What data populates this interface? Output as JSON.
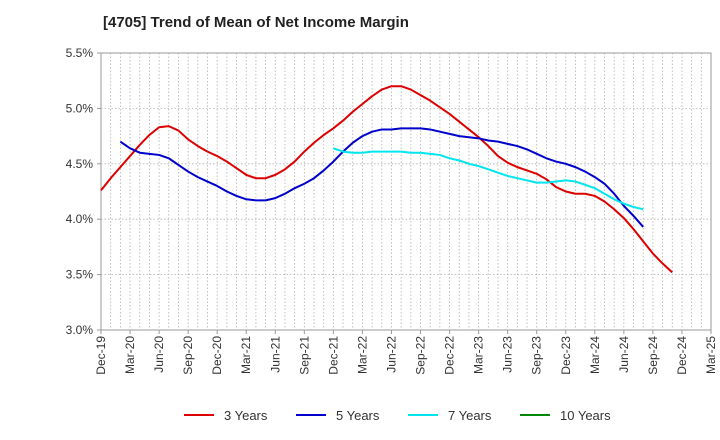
{
  "chart_data": {
    "type": "line",
    "title": "[4705]  Trend of Mean of Net Income Margin",
    "xlabel": "",
    "ylabel": "",
    "ylim": [
      3.0,
      5.5
    ],
    "y_ticks": [
      "3.0%",
      "3.5%",
      "4.0%",
      "4.5%",
      "5.0%",
      "5.5%"
    ],
    "y_tick_values": [
      3.0,
      3.5,
      4.0,
      4.5,
      5.0,
      5.5
    ],
    "x_ticks": [
      "Dec-19",
      "Mar-20",
      "Jun-20",
      "Sep-20",
      "Dec-20",
      "Mar-21",
      "Jun-21",
      "Sep-21",
      "Dec-21",
      "Mar-22",
      "Jun-22",
      "Sep-22",
      "Dec-22",
      "Mar-23",
      "Jun-23",
      "Sep-23",
      "Dec-23",
      "Mar-24",
      "Jun-24",
      "Sep-24",
      "Dec-24",
      "Mar-25"
    ],
    "grid": true,
    "legend_position": "bottom",
    "series": [
      {
        "name": "3 Years",
        "color": "#dd0000",
        "points": [
          [
            "Dec-19",
            4.26
          ],
          [
            "Jan-20",
            4.37
          ],
          [
            "Feb-20",
            4.47
          ],
          [
            "Mar-20",
            4.57
          ],
          [
            "Apr-20",
            4.67
          ],
          [
            "May-20",
            4.76
          ],
          [
            "Jun-20",
            4.83
          ],
          [
            "Jul-20",
            4.84
          ],
          [
            "Aug-20",
            4.8
          ],
          [
            "Sep-20",
            4.72
          ],
          [
            "Oct-20",
            4.66
          ],
          [
            "Nov-20",
            4.61
          ],
          [
            "Dec-20",
            4.57
          ],
          [
            "Jan-21",
            4.52
          ],
          [
            "Feb-21",
            4.46
          ],
          [
            "Mar-21",
            4.4
          ],
          [
            "Apr-21",
            4.37
          ],
          [
            "May-21",
            4.37
          ],
          [
            "Jun-21",
            4.4
          ],
          [
            "Jul-21",
            4.45
          ],
          [
            "Aug-21",
            4.52
          ],
          [
            "Sep-21",
            4.61
          ],
          [
            "Oct-21",
            4.69
          ],
          [
            "Nov-21",
            4.76
          ],
          [
            "Dec-21",
            4.82
          ],
          [
            "Jan-22",
            4.89
          ],
          [
            "Feb-22",
            4.97
          ],
          [
            "Mar-22",
            5.04
          ],
          [
            "Apr-22",
            5.11
          ],
          [
            "May-22",
            5.17
          ],
          [
            "Jun-22",
            5.2
          ],
          [
            "Jul-22",
            5.2
          ],
          [
            "Aug-22",
            5.17
          ],
          [
            "Sep-22",
            5.12
          ],
          [
            "Oct-22",
            5.07
          ],
          [
            "Nov-22",
            5.01
          ],
          [
            "Dec-22",
            4.95
          ],
          [
            "Jan-23",
            4.88
          ],
          [
            "Feb-23",
            4.81
          ],
          [
            "Mar-23",
            4.74
          ],
          [
            "Apr-23",
            4.66
          ],
          [
            "May-23",
            4.57
          ],
          [
            "Jun-23",
            4.51
          ],
          [
            "Jul-23",
            4.47
          ],
          [
            "Aug-23",
            4.44
          ],
          [
            "Sep-23",
            4.41
          ],
          [
            "Oct-23",
            4.36
          ],
          [
            "Nov-23",
            4.29
          ],
          [
            "Dec-23",
            4.25
          ],
          [
            "Jan-24",
            4.23
          ],
          [
            "Feb-24",
            4.23
          ],
          [
            "Mar-24",
            4.21
          ],
          [
            "Apr-24",
            4.16
          ],
          [
            "May-24",
            4.09
          ],
          [
            "Jun-24",
            4.01
          ],
          [
            "Jul-24",
            3.91
          ],
          [
            "Aug-24",
            3.8
          ],
          [
            "Sep-24",
            3.69
          ],
          [
            "Oct-24",
            3.6
          ],
          [
            "Nov-24",
            3.52
          ]
        ]
      },
      {
        "name": "5 Years",
        "color": "#0000cc",
        "points": [
          [
            "Feb-20",
            4.7
          ],
          [
            "Mar-20",
            4.64
          ],
          [
            "Apr-20",
            4.6
          ],
          [
            "May-20",
            4.59
          ],
          [
            "Jun-20",
            4.58
          ],
          [
            "Jul-20",
            4.55
          ],
          [
            "Aug-20",
            4.49
          ],
          [
            "Sep-20",
            4.43
          ],
          [
            "Oct-20",
            4.38
          ],
          [
            "Nov-20",
            4.34
          ],
          [
            "Dec-20",
            4.3
          ],
          [
            "Jan-21",
            4.25
          ],
          [
            "Feb-21",
            4.21
          ],
          [
            "Mar-21",
            4.18
          ],
          [
            "Apr-21",
            4.17
          ],
          [
            "May-21",
            4.17
          ],
          [
            "Jun-21",
            4.19
          ],
          [
            "Jul-21",
            4.23
          ],
          [
            "Aug-21",
            4.28
          ],
          [
            "Sep-21",
            4.32
          ],
          [
            "Oct-21",
            4.37
          ],
          [
            "Nov-21",
            4.44
          ],
          [
            "Dec-21",
            4.52
          ],
          [
            "Jan-22",
            4.61
          ],
          [
            "Feb-22",
            4.69
          ],
          [
            "Mar-22",
            4.75
          ],
          [
            "Apr-22",
            4.79
          ],
          [
            "May-22",
            4.81
          ],
          [
            "Jun-22",
            4.81
          ],
          [
            "Jul-22",
            4.82
          ],
          [
            "Aug-22",
            4.82
          ],
          [
            "Sep-22",
            4.82
          ],
          [
            "Oct-22",
            4.81
          ],
          [
            "Nov-22",
            4.79
          ],
          [
            "Dec-22",
            4.77
          ],
          [
            "Jan-23",
            4.75
          ],
          [
            "Feb-23",
            4.74
          ],
          [
            "Mar-23",
            4.73
          ],
          [
            "Apr-23",
            4.71
          ],
          [
            "May-23",
            4.7
          ],
          [
            "Jun-23",
            4.68
          ],
          [
            "Jul-23",
            4.66
          ],
          [
            "Aug-23",
            4.63
          ],
          [
            "Sep-23",
            4.59
          ],
          [
            "Oct-23",
            4.55
          ],
          [
            "Nov-23",
            4.52
          ],
          [
            "Dec-23",
            4.5
          ],
          [
            "Jan-24",
            4.47
          ],
          [
            "Feb-24",
            4.43
          ],
          [
            "Mar-24",
            4.38
          ],
          [
            "Apr-24",
            4.32
          ],
          [
            "May-24",
            4.23
          ],
          [
            "Jun-24",
            4.12
          ],
          [
            "Jul-24",
            4.03
          ],
          [
            "Aug-24",
            3.93
          ]
        ]
      },
      {
        "name": "7 Years",
        "color": "#00e5ee",
        "points": [
          [
            "Dec-21",
            4.64
          ],
          [
            "Jan-22",
            4.61
          ],
          [
            "Feb-22",
            4.6
          ],
          [
            "Mar-22",
            4.6
          ],
          [
            "Apr-22",
            4.61
          ],
          [
            "May-22",
            4.61
          ],
          [
            "Jun-22",
            4.61
          ],
          [
            "Jul-22",
            4.61
          ],
          [
            "Aug-22",
            4.6
          ],
          [
            "Sep-22",
            4.6
          ],
          [
            "Oct-22",
            4.59
          ],
          [
            "Nov-22",
            4.58
          ],
          [
            "Dec-22",
            4.55
          ],
          [
            "Jan-23",
            4.53
          ],
          [
            "Feb-23",
            4.5
          ],
          [
            "Mar-23",
            4.48
          ],
          [
            "Apr-23",
            4.45
          ],
          [
            "May-23",
            4.42
          ],
          [
            "Jun-23",
            4.39
          ],
          [
            "Jul-23",
            4.37
          ],
          [
            "Aug-23",
            4.35
          ],
          [
            "Sep-23",
            4.33
          ],
          [
            "Oct-23",
            4.33
          ],
          [
            "Nov-23",
            4.34
          ],
          [
            "Dec-23",
            4.35
          ],
          [
            "Jan-24",
            4.34
          ],
          [
            "Feb-24",
            4.31
          ],
          [
            "Mar-24",
            4.28
          ],
          [
            "Apr-24",
            4.23
          ],
          [
            "May-24",
            4.18
          ],
          [
            "Jun-24",
            4.14
          ],
          [
            "Jul-24",
            4.11
          ],
          [
            "Aug-24",
            4.09
          ]
        ]
      },
      {
        "name": "10 Years",
        "color": "#008800",
        "points": []
      }
    ]
  }
}
